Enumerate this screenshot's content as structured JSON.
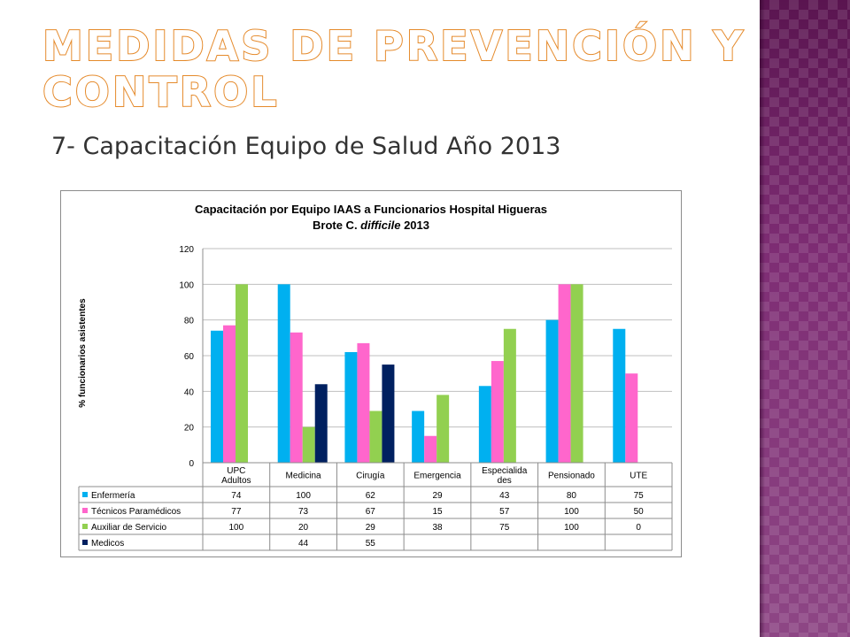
{
  "slide": {
    "title_line1": "Medidas de Prevención y",
    "title_line2": "Control",
    "subtitle": "7- Capacitación Equipo de Salud Año 2013"
  },
  "colors": {
    "title_outline": "#e58a2b",
    "side_panel": "#7e2d74"
  },
  "chart_data": {
    "type": "bar",
    "title_line1": "Capacitación por Equipo IAAS  a Funcionarios Hospital Higueras",
    "title_line2_prefix": "Brote C. ",
    "title_line2_italic": "difficile",
    "title_line2_suffix": " 2013",
    "ylabel": "% funcionarios asistentes",
    "ylim": [
      0,
      120
    ],
    "yticks": [
      "0",
      "20",
      "40",
      "60",
      "80",
      "100",
      "120"
    ],
    "grid": true,
    "legend": "data-table",
    "categories": [
      [
        "UPC",
        "Adultos"
      ],
      [
        "Medicina"
      ],
      [
        "Cirugía"
      ],
      [
        "Emergencia"
      ],
      [
        "Especialida",
        "des"
      ],
      [
        "Pensionado"
      ],
      [
        "UTE"
      ]
    ],
    "series": [
      {
        "name": "Enfermería",
        "color": "#00b0f0",
        "values": [
          74,
          100,
          62,
          29,
          43,
          80,
          75
        ],
        "labels": [
          "74",
          "100",
          "62",
          "29",
          "43",
          "80",
          "75"
        ]
      },
      {
        "name": "Técnicos Paramédicos",
        "color": "#ff66cc",
        "values": [
          77,
          73,
          67,
          15,
          57,
          100,
          50
        ],
        "labels": [
          "77",
          "73",
          "67",
          "15",
          "57",
          "100",
          "50"
        ]
      },
      {
        "name": "Auxiliar de Servicio",
        "color": "#92d050",
        "values": [
          100,
          20,
          29,
          38,
          75,
          100,
          0
        ],
        "labels": [
          "100",
          "20",
          "29",
          "38",
          "75",
          "100",
          "0"
        ]
      },
      {
        "name": "Medicos",
        "color": "#002060",
        "values": [
          null,
          44,
          55,
          null,
          null,
          null,
          null
        ],
        "labels": [
          "",
          "44",
          "55",
          "",
          "",
          "",
          ""
        ]
      }
    ]
  }
}
